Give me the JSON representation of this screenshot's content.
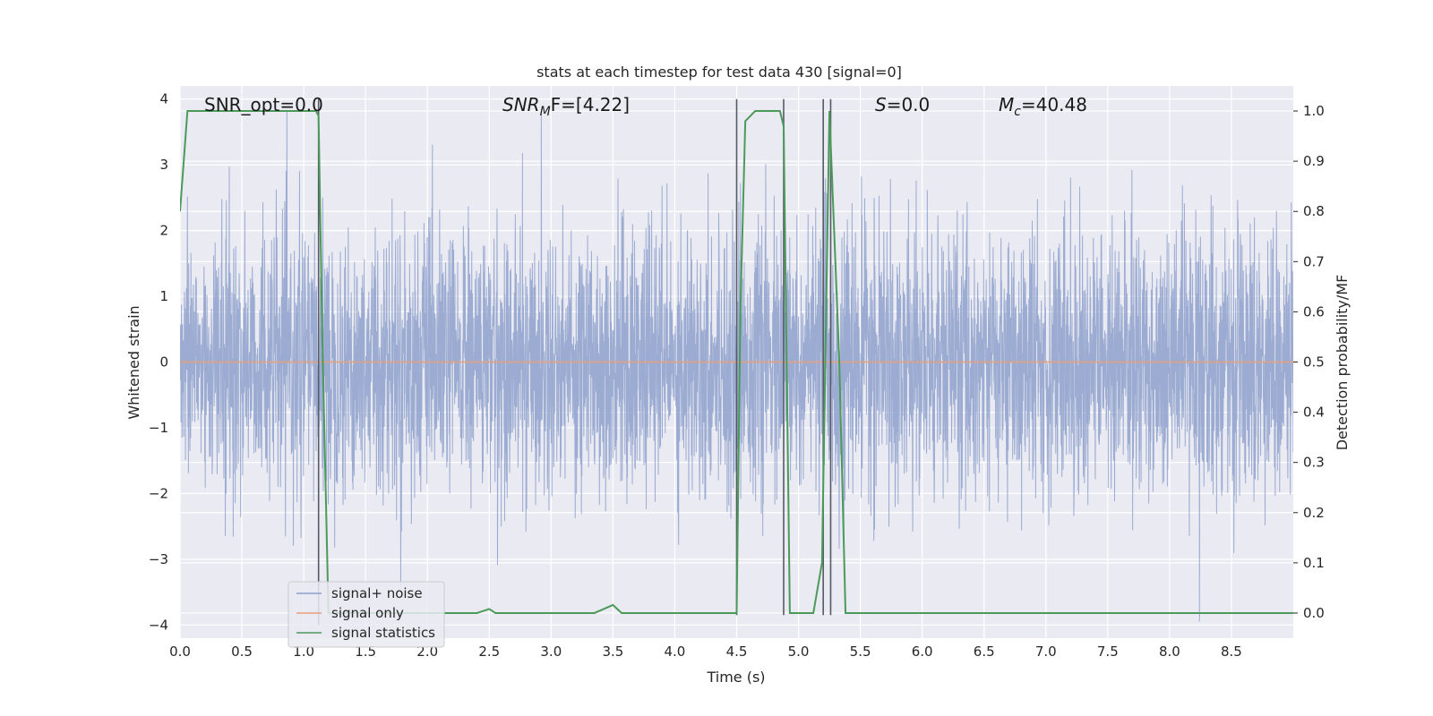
{
  "chart_data": {
    "type": "line",
    "title": "stats at each timestep for test data 430 [signal=0]",
    "xlabel": "Time (s)",
    "ylabel_left": "Whitened strain",
    "ylabel_right": "Detection probability/MF",
    "xlim": [
      0,
      9
    ],
    "ylim_left": [
      -4.2,
      4.2
    ],
    "ylim_right": [
      -0.05,
      1.05
    ],
    "xticks": [
      "0.0",
      "0.5",
      "1.0",
      "1.5",
      "2.0",
      "2.5",
      "3.0",
      "3.5",
      "4.0",
      "4.5",
      "5.0",
      "5.5",
      "6.0",
      "6.5",
      "7.0",
      "7.5",
      "8.0",
      "8.5"
    ],
    "yticks_left": [
      "4",
      "3",
      "2",
      "1",
      "0",
      "−1",
      "−2",
      "−3",
      "−4"
    ],
    "yticks_right": [
      "1.0",
      "0.9",
      "0.8",
      "0.7",
      "0.6",
      "0.5",
      "0.4",
      "0.3",
      "0.2",
      "0.1",
      "0.0"
    ],
    "grid": true,
    "legend_placement": "lower-left",
    "annotations": {
      "snr_opt": "SNR_opt=0.0",
      "snr_mf_main": "SNR",
      "snr_mf_sub": "M",
      "snr_mf_rest": "F=[4.22]",
      "s_main": "S",
      "s_rest": "=0.0",
      "mc_main": "M",
      "mc_sub": "c",
      "mc_rest": "=40.48"
    },
    "series": [
      {
        "name": "signal+ noise",
        "color": "#8da0cb",
        "description_axis": "left",
        "noise_amplitude_std": 1.0,
        "x_range": [
          0,
          9
        ]
      },
      {
        "name": "signal only",
        "color": "#e8a07a",
        "axis": "left",
        "x": [
          0,
          9
        ],
        "y": [
          0,
          0
        ]
      },
      {
        "name": "signal statistics",
        "color": "#4c9a5a",
        "axis": "right",
        "x": [
          0.0,
          0.06,
          0.12,
          1.1,
          1.12,
          1.15,
          1.2,
          1.3,
          2.4,
          2.5,
          2.55,
          3.35,
          3.5,
          3.57,
          4.5,
          4.53,
          4.57,
          4.65,
          4.85,
          4.88,
          4.93,
          5.12,
          5.19,
          5.25,
          5.33,
          5.38,
          6.9,
          9.0
        ],
        "y": [
          0.8,
          1.0,
          1.0,
          1.0,
          0.99,
          0.55,
          0.0,
          0.0,
          0.0,
          0.008,
          0.0,
          0.0,
          0.016,
          0.0,
          0.0,
          0.6,
          0.98,
          1.0,
          1.0,
          0.97,
          0.0,
          0.0,
          0.1,
          1.0,
          0.5,
          0.0,
          0.0,
          0.0
        ]
      }
    ],
    "vertical_lines": [
      {
        "x": 1.12,
        "ymin": -4.0,
        "ymax": 4.0,
        "color": "#555a66"
      },
      {
        "x": 4.5,
        "ymin": -3.85,
        "ymax": 4.0,
        "color": "#555a66"
      },
      {
        "x": 4.88,
        "ymin": -3.85,
        "ymax": 4.0,
        "color": "#555a66"
      },
      {
        "x": 5.2,
        "ymin": -3.85,
        "ymax": 4.0,
        "color": "#555a66"
      },
      {
        "x": 5.26,
        "ymin": -3.85,
        "ymax": 4.0,
        "color": "#555a66"
      }
    ],
    "legend": [
      {
        "label": "signal+ noise",
        "color": "#8da0cb"
      },
      {
        "label": "signal only",
        "color": "#e8a07a"
      },
      {
        "label": "signal statistics",
        "color": "#4c9a5a"
      }
    ],
    "colors": {
      "plot_background": "#eaeaf2",
      "grid": "#ffffff"
    }
  }
}
